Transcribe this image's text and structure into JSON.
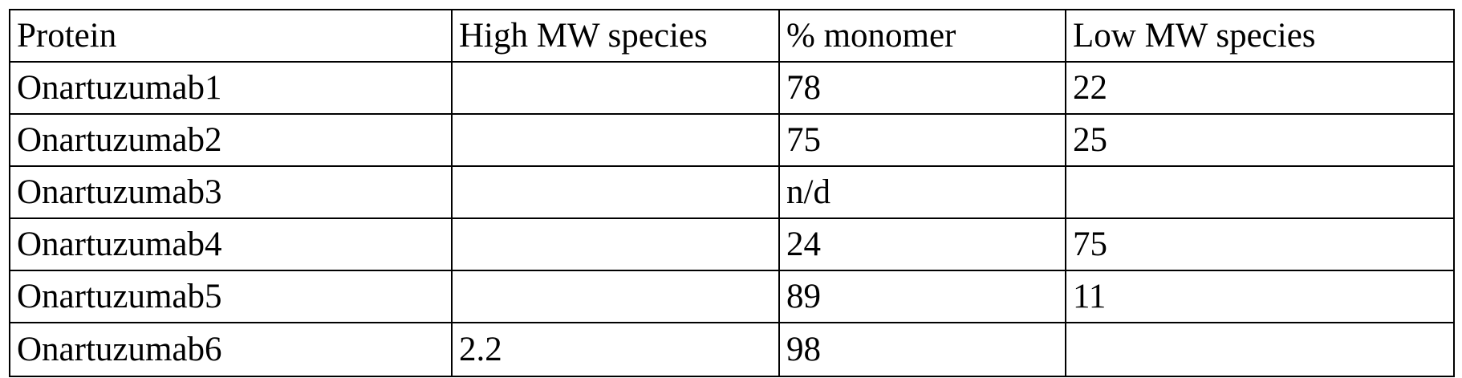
{
  "table": {
    "headers": [
      "Protein",
      "High MW species",
      "% monomer",
      "Low MW species"
    ],
    "rows": [
      [
        "Onartuzumab1",
        "",
        "78",
        "22"
      ],
      [
        "Onartuzumab2",
        "",
        "75",
        "25"
      ],
      [
        "Onartuzumab3",
        "",
        "n/d",
        ""
      ],
      [
        "Onartuzumab4",
        "",
        "24",
        "75"
      ],
      [
        "Onartuzumab5",
        "",
        "89",
        "11"
      ],
      [
        "Onartuzumab6",
        "2.2",
        "98",
        ""
      ]
    ]
  }
}
